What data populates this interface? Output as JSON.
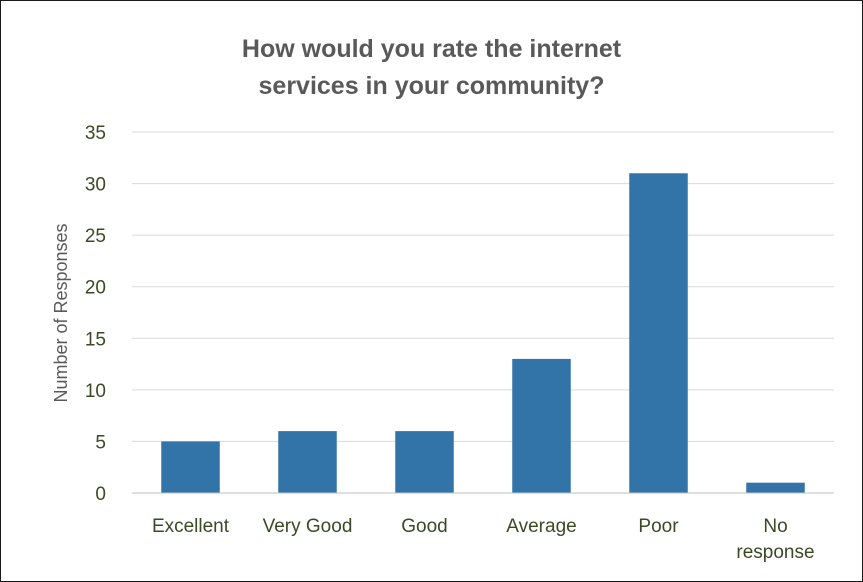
{
  "chart_data": {
    "type": "bar",
    "title": "How would you rate the internet\nservices in your community?",
    "xlabel": "",
    "ylabel": "Number of Responses",
    "categories": [
      "Excellent",
      "Very Good",
      "Good",
      "Average",
      "Poor",
      "No\nresponse"
    ],
    "values": [
      5,
      6,
      6,
      13,
      31,
      1
    ],
    "ylim": [
      0,
      35
    ],
    "yticks": [
      0,
      5,
      10,
      15,
      20,
      25,
      30,
      35
    ],
    "grid": true,
    "legend": "none",
    "bar_color": "#3274a8",
    "gridline_color": "#d9d9d9",
    "axis_line_color": "#bfbfbf",
    "tick_label_color": "#3a4a24",
    "title_color": "#595959"
  }
}
